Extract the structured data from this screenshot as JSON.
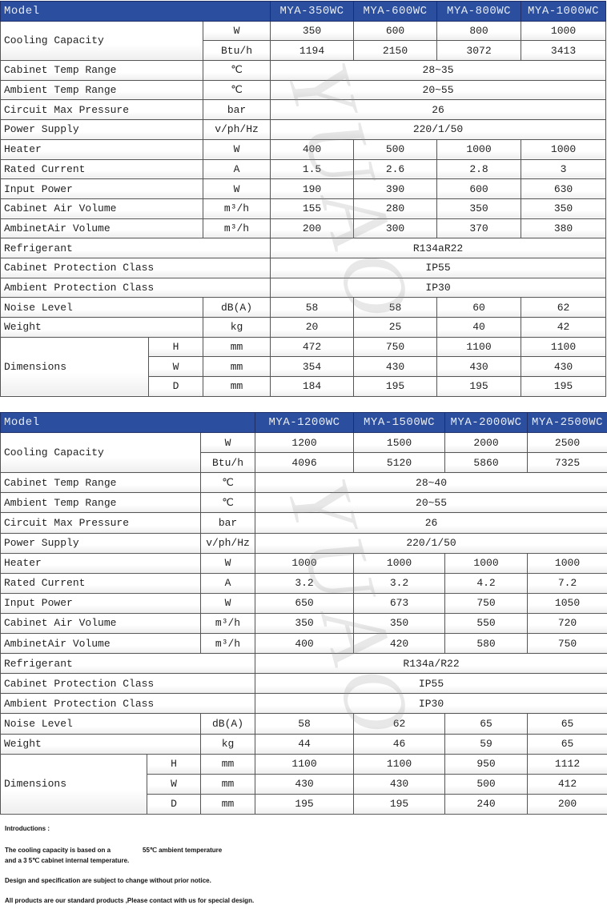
{
  "watermark": "YUAO",
  "tables": [
    {
      "model_label": "Model",
      "models": [
        "MYA-350WC",
        "MYA-600WC",
        "MYA-800WC",
        "MYA-1000WC"
      ],
      "cooling": {
        "label": "Cooling Capacity",
        "rows": [
          {
            "unit": "W",
            "values": [
              "350",
              "600",
              "800",
              "1000"
            ]
          },
          {
            "unit": "Btu/h",
            "values": [
              "1194",
              "2150",
              "3072",
              "3413"
            ]
          }
        ]
      },
      "rows": [
        {
          "label": "Cabinet Temp Range",
          "unit": "℃",
          "span": "28~35"
        },
        {
          "label": "Ambient Temp Range",
          "unit": "℃",
          "span": "20~55"
        },
        {
          "label": "Circuit Max Pressure",
          "unit": "bar",
          "span": "26"
        },
        {
          "label": "Power Supply",
          "unit": "v/ph/Hz",
          "span": "220/1/50"
        },
        {
          "label": "Heater",
          "unit": "W",
          "values": [
            "400",
            "500",
            "1000",
            "1000"
          ]
        },
        {
          "label": "Rated Current",
          "unit": "A",
          "values": [
            "1.5",
            "2.6",
            "2.8",
            "3"
          ]
        },
        {
          "label": "Input Power",
          "unit": "W",
          "values": [
            "190",
            "390",
            "600",
            "630"
          ]
        },
        {
          "label": "Cabinet Air Volume",
          "unit": "m³/h",
          "values": [
            "155",
            "280",
            "350",
            "350"
          ]
        },
        {
          "label": "AmbinetAir Volume",
          "unit": "m³/h",
          "values": [
            "200",
            "300",
            "370",
            "380"
          ]
        },
        {
          "label": "Refrigerant",
          "span": "R134aR22"
        },
        {
          "label": "Cabinet Protection Class",
          "span": "IP55"
        },
        {
          "label": "Ambient Protection Class",
          "span": "IP30"
        },
        {
          "label": "Noise Level",
          "unit": "dB(A)",
          "values": [
            "58",
            "58",
            "60",
            "62"
          ]
        },
        {
          "label": "Weight",
          "unit": "kg",
          "values": [
            "20",
            "25",
            "40",
            "42"
          ]
        }
      ],
      "dimensions": {
        "label": "Dimensions",
        "rows": [
          {
            "axis": "H",
            "unit": "mm",
            "values": [
              "472",
              "750",
              "1100",
              "1100"
            ]
          },
          {
            "axis": "W",
            "unit": "mm",
            "values": [
              "354",
              "430",
              "430",
              "430"
            ]
          },
          {
            "axis": "D",
            "unit": "mm",
            "values": [
              "184",
              "195",
              "195",
              "195"
            ]
          }
        ]
      }
    },
    {
      "model_label": "Model",
      "models": [
        "MYA-1200WC",
        "MYA-1500WC",
        "MYA-2000WC",
        "MYA-2500WC"
      ],
      "cooling": {
        "label": "Cooling Capacity",
        "rows": [
          {
            "unit": "W",
            "values": [
              "1200",
              "1500",
              "2000",
              "2500"
            ]
          },
          {
            "unit": "Btu/h",
            "values": [
              "4096",
              "5120",
              "5860",
              "7325"
            ]
          }
        ]
      },
      "rows": [
        {
          "label": "Cabinet Temp Range",
          "unit": "℃",
          "span": "28~40"
        },
        {
          "label": "Ambient Temp Range",
          "unit": "℃",
          "span": "20~55"
        },
        {
          "label": "Circuit Max Pressure",
          "unit": "bar",
          "span": "26"
        },
        {
          "label": "Power Supply",
          "unit": "v/ph/Hz",
          "span": "220/1/50"
        },
        {
          "label": "Heater",
          "unit": "W",
          "values": [
            "1000",
            "1000",
            "1000",
            "1000"
          ]
        },
        {
          "label": "Rated Current",
          "unit": "A",
          "values": [
            "3.2",
            "3.2",
            "4.2",
            "7.2"
          ]
        },
        {
          "label": "Input Power",
          "unit": "W",
          "values": [
            "650",
            "673",
            "750",
            "1050"
          ]
        },
        {
          "label": "Cabinet Air Volume",
          "unit": "m³/h",
          "values": [
            "350",
            "350",
            "550",
            "720"
          ]
        },
        {
          "label": "AmbinetAir Volume",
          "unit": "m³/h",
          "values": [
            "400",
            "420",
            "580",
            "750"
          ]
        },
        {
          "label": "Refrigerant",
          "span": "R134a/R22"
        },
        {
          "label": "Cabinet Protection Class",
          "span": "IP55"
        },
        {
          "label": "Ambient Protection Class",
          "span": "IP30"
        },
        {
          "label": "Noise Level",
          "unit": "dB(A)",
          "values": [
            "58",
            "62",
            "65",
            "65"
          ]
        },
        {
          "label": "Weight",
          "unit": "kg",
          "values": [
            "44",
            "46",
            "59",
            "65"
          ]
        }
      ],
      "dimensions": {
        "label": "Dimensions",
        "rows": [
          {
            "axis": "H",
            "unit": "mm",
            "values": [
              "1100",
              "1100",
              "950",
              "1112"
            ]
          },
          {
            "axis": "W",
            "unit": "mm",
            "values": [
              "430",
              "430",
              "500",
              "412"
            ]
          },
          {
            "axis": "D",
            "unit": "mm",
            "values": [
              "195",
              "195",
              "240",
              "200"
            ]
          }
        ]
      }
    }
  ],
  "notes": {
    "heading": "Introductions  :",
    "line1a": "The cooling capacity is based on a",
    "line1b": "55℃  ambient temperature",
    "line2": "and a 3 5℃  cabinet internal temperature.",
    "line3": "Design and specification are subject to change without prior notice.",
    "line4": "All products are our standard products ,Please contact with us for special design."
  }
}
